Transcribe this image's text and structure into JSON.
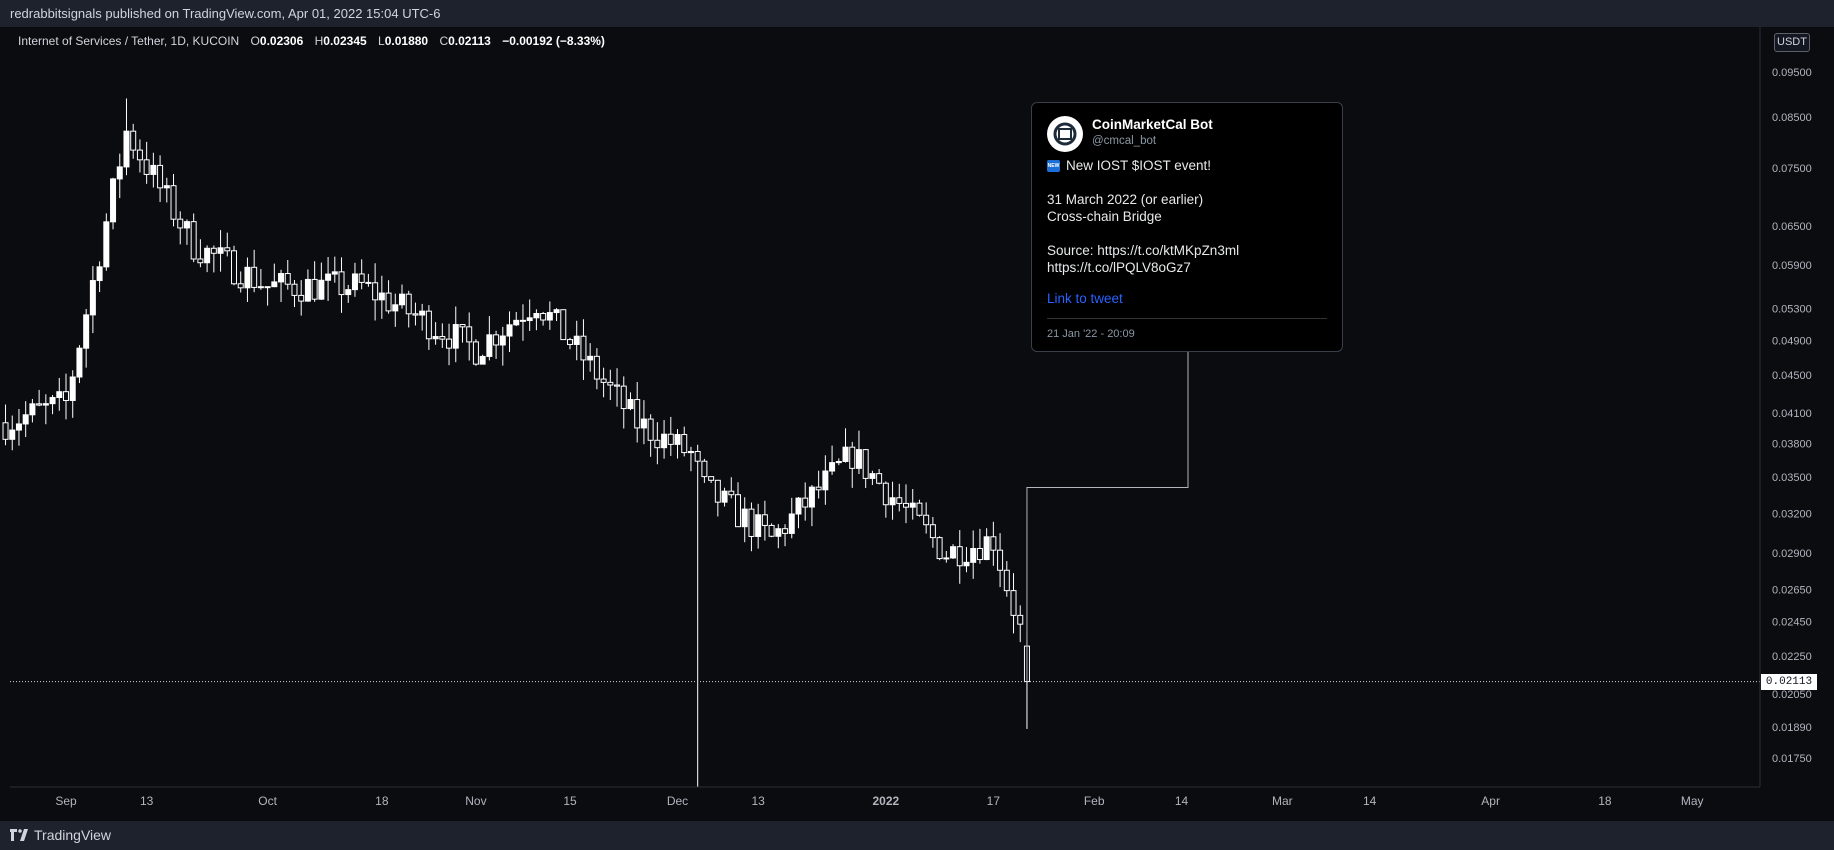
{
  "header": {
    "published_text": "redrabbitsignals published on TradingView.com, Apr 01, 2022 15:04 UTC-6"
  },
  "legend": {
    "symbol": "Internet of Services / Tether, 1D, KUCOIN",
    "open_label": "O",
    "open": "0.02306",
    "high_label": "H",
    "high": "0.02345",
    "low_label": "L",
    "low": "0.01880",
    "close_label": "C",
    "close": "0.02113",
    "change": "−0.00192 (−8.33%)"
  },
  "price_axis": {
    "unit": "USDT",
    "current_price": "0.02113"
  },
  "tweet": {
    "name": "CoinMarketCal Bot",
    "handle": "@cmcal_bot",
    "badge": "NEW",
    "headline": "New IOST $IOST event!",
    "line1": "31 March 2022 (or earlier)",
    "line2": "Cross-chain Bridge",
    "source": "Source: https://t.co/ktMKpZn3ml https://t.co/lPQLV8oGz7",
    "link_label": "Link to tweet",
    "date": "21 Jan '22 - 20:09"
  },
  "footer": {
    "brand": "TradingView"
  },
  "colors": {
    "background": "#131722",
    "candle_body": "#ffffff",
    "candle_wick": "#ffffff",
    "grid": "#2a2e39",
    "link": "#2962ff"
  },
  "chart_data": {
    "type": "candlestick",
    "scale": "log",
    "grid": true,
    "ylim": [
      0.0165,
      0.105
    ],
    "y_ticks": [
      "0.09500",
      "0.08500",
      "0.07500",
      "0.06500",
      "0.05900",
      "0.05300",
      "0.04900",
      "0.04500",
      "0.04100",
      "0.03800",
      "0.03500",
      "0.03200",
      "0.02900",
      "0.02650",
      "0.02450",
      "0.02250",
      "0.02050",
      "0.01890",
      "0.01750"
    ],
    "x_ticks": [
      {
        "date": "2021-09-01",
        "label": "Sep"
      },
      {
        "date": "2021-09-13",
        "label": "13"
      },
      {
        "date": "2021-10-01",
        "label": "Oct"
      },
      {
        "date": "2021-10-18",
        "label": "18"
      },
      {
        "date": "2021-11-01",
        "label": "Nov"
      },
      {
        "date": "2021-11-15",
        "label": "15"
      },
      {
        "date": "2021-12-01",
        "label": "Dec"
      },
      {
        "date": "2021-12-13",
        "label": "13"
      },
      {
        "date": "2022-01-01",
        "label": "2022"
      },
      {
        "date": "2022-01-17",
        "label": "17"
      },
      {
        "date": "2022-02-01",
        "label": "Feb"
      },
      {
        "date": "2022-02-14",
        "label": "14"
      },
      {
        "date": "2022-03-01",
        "label": "Mar"
      },
      {
        "date": "2022-03-14",
        "label": "14"
      },
      {
        "date": "2022-04-01",
        "label": "Apr"
      },
      {
        "date": "2022-04-18",
        "label": "18"
      },
      {
        "date": "2022-05-01",
        "label": "May"
      }
    ],
    "key_points": [
      {
        "date": "2021-08-23",
        "close": 0.04
      },
      {
        "date": "2021-09-01",
        "close": 0.042
      },
      {
        "date": "2021-09-10",
        "close": 0.082
      },
      {
        "date": "2021-09-20",
        "close": 0.062
      },
      {
        "date": "2021-10-01",
        "close": 0.056
      },
      {
        "date": "2021-10-15",
        "close": 0.056
      },
      {
        "date": "2021-11-01",
        "close": 0.048
      },
      {
        "date": "2021-11-10",
        "close": 0.054
      },
      {
        "date": "2021-11-25",
        "close": 0.04
      },
      {
        "date": "2021-12-03",
        "close": 0.037
      },
      {
        "date": "2021-12-05",
        "close": 0.034
      },
      {
        "date": "2021-12-15",
        "close": 0.03
      },
      {
        "date": "2021-12-27",
        "close": 0.037
      },
      {
        "date": "2022-01-10",
        "close": 0.029
      },
      {
        "date": "2022-01-17",
        "close": 0.03
      },
      {
        "date": "2022-01-21",
        "close": 0.024
      },
      {
        "date": "2022-01-22",
        "close": 0.02113
      }
    ],
    "notable_wicks": [
      {
        "date": "2021-09-10",
        "high": 0.089
      },
      {
        "date": "2021-12-04",
        "low": 0.016
      },
      {
        "date": "2022-01-22",
        "low": 0.0188
      }
    ],
    "last_candle": {
      "date": "2022-01-22",
      "open": 0.02306,
      "high": 0.02345,
      "low": 0.0188,
      "close": 0.02113
    },
    "connector_to_tweet": {
      "date": "2022-01-22",
      "from_price": 0.0341
    },
    "current_price_line": 0.02113
  }
}
